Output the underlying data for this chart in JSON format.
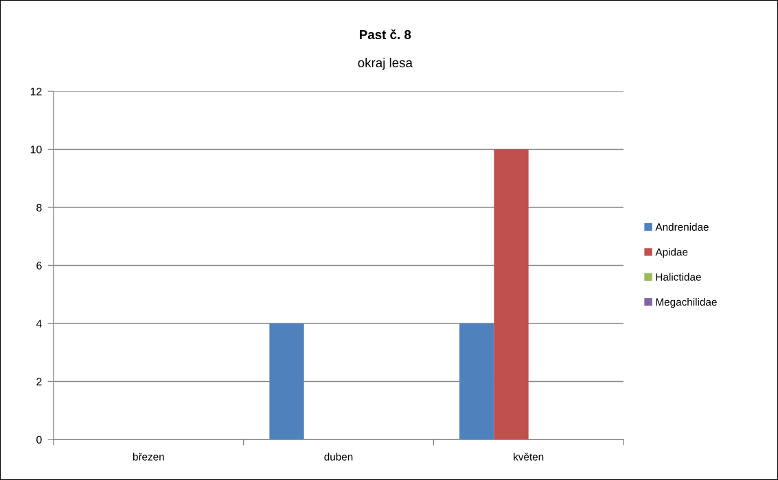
{
  "chart_data": {
    "type": "bar",
    "title": "Past č. 8",
    "subtitle": "okraj lesa",
    "categories": [
      "březen",
      "duben",
      "květen"
    ],
    "series": [
      {
        "name": "Andrenidae",
        "color": "#4f81bd",
        "values": [
          0,
          4,
          4
        ]
      },
      {
        "name": "Apidae",
        "color": "#c0504d",
        "values": [
          0,
          0,
          10
        ]
      },
      {
        "name": "Halictidae",
        "color": "#9bbb59",
        "values": [
          0,
          0,
          0
        ]
      },
      {
        "name": "Megachilidae",
        "color": "#8064a2",
        "values": [
          0,
          0,
          0
        ]
      }
    ],
    "ylim": [
      0,
      12
    ],
    "yticks": [
      0,
      2,
      4,
      6,
      8,
      10,
      12
    ],
    "grid": "y",
    "legend": "right"
  }
}
